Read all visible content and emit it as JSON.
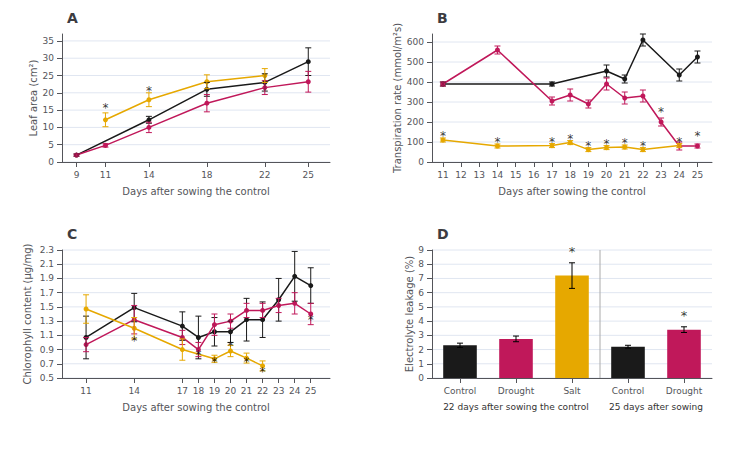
{
  "chart_data": [
    {
      "type": "line",
      "title": "A",
      "xlabel": "Days after sowing the control",
      "ylabel": "Leaf area (cm²)",
      "xlim": [
        8.0,
        26.5
      ],
      "xticks": [
        9,
        11,
        14,
        18,
        22,
        25
      ],
      "ylim": [
        0,
        37
      ],
      "yticks": [
        0,
        5,
        10,
        15,
        20,
        25,
        30,
        35
      ],
      "grid": true,
      "series": [
        {
          "color": "#1a1a1a",
          "x": [
            9,
            14,
            18,
            22,
            25
          ],
          "values": [
            2.0,
            12.2,
            21.0,
            23.0,
            29.0
          ],
          "errors": [
            0.3,
            1.0,
            2.0,
            2.5,
            4.0
          ]
        },
        {
          "color": "#c0185a",
          "x": [
            9,
            11,
            14,
            18,
            22,
            25
          ],
          "values": [
            2.0,
            4.8,
            10.0,
            17.0,
            21.5,
            23.2
          ],
          "errors": [
            0.3,
            0.5,
            1.5,
            2.5,
            2.0,
            3.0
          ]
        },
        {
          "color": "#e6a800",
          "x": [
            11,
            14,
            18,
            22
          ],
          "values": [
            12.2,
            18.0,
            23.2,
            25.0
          ],
          "errors": [
            2.0,
            2.0,
            2.0,
            2.0
          ]
        }
      ],
      "annotations": [
        {
          "text": "*",
          "x": 11,
          "y": 15.5
        },
        {
          "text": "*",
          "x": 14,
          "y": 20.5
        }
      ]
    },
    {
      "type": "line",
      "title": "B",
      "xlabel": "Days after sowing the control",
      "ylabel": "Transpiration rate (mmol/m²s)",
      "xlim": [
        10.4,
        25.8
      ],
      "xticks": [
        11,
        12,
        13,
        14,
        15,
        16,
        17,
        18,
        19,
        20,
        21,
        22,
        23,
        24,
        25
      ],
      "ylim": [
        0,
        640
      ],
      "yticks": [
        0,
        100,
        200,
        300,
        400,
        500,
        600
      ],
      "grid": true,
      "series": [
        {
          "color": "#1a1a1a",
          "x": [
            11,
            17,
            20,
            21,
            22,
            24,
            25
          ],
          "values": [
            390,
            390,
            455,
            415,
            610,
            435,
            525
          ],
          "errors": [
            10,
            10,
            30,
            20,
            30,
            30,
            30
          ]
        },
        {
          "color": "#c0185a",
          "x": [
            11,
            14,
            17,
            18,
            19,
            20,
            21,
            22,
            23,
            24,
            25
          ],
          "values": [
            390,
            560,
            305,
            335,
            290,
            390,
            320,
            330,
            200,
            80,
            80
          ],
          "errors": [
            10,
            20,
            20,
            30,
            20,
            30,
            30,
            30,
            20,
            20,
            10
          ]
        },
        {
          "color": "#e6a800",
          "x": [
            11,
            14,
            17,
            18,
            19,
            20,
            21,
            22,
            24
          ],
          "values": [
            110,
            80,
            82,
            97,
            62,
            72,
            75,
            62,
            82
          ],
          "errors": [
            10,
            10,
            10,
            10,
            10,
            10,
            10,
            10,
            10
          ]
        }
      ],
      "annotations": [
        {
          "text": "*",
          "x": 11,
          "y": 130
        },
        {
          "text": "*",
          "x": 14,
          "y": 100
        },
        {
          "text": "*",
          "x": 17,
          "y": 102
        },
        {
          "text": "*",
          "x": 18,
          "y": 117
        },
        {
          "text": "*",
          "x": 19,
          "y": 82
        },
        {
          "text": "*",
          "x": 20,
          "y": 92
        },
        {
          "text": "*",
          "x": 21,
          "y": 95
        },
        {
          "text": "*",
          "x": 22,
          "y": 82
        },
        {
          "text": "*",
          "x": 24,
          "y": 102
        },
        {
          "text": "*",
          "x": 23,
          "y": 250
        },
        {
          "text": "*",
          "x": 25,
          "y": 130
        }
      ]
    },
    {
      "type": "line",
      "title": "C",
      "xlabel": "Days after sowing the control",
      "ylabel": "Chlorophyll content (μg/mg)",
      "xlim": [
        9.5,
        26.2
      ],
      "xticks": [
        11,
        14,
        17,
        18,
        19,
        20,
        21,
        22,
        23,
        24,
        25
      ],
      "ylim": [
        0.5,
        2.3
      ],
      "yticks": [
        0.5,
        0.7,
        0.9,
        1.1,
        1.3,
        1.5,
        1.7,
        1.9,
        2.1,
        2.3
      ],
      "grid": true,
      "series": [
        {
          "color": "#1a1a1a",
          "x": [
            11,
            14,
            17,
            18,
            19,
            20,
            21,
            22,
            23,
            24,
            25
          ],
          "values": [
            1.07,
            1.49,
            1.23,
            1.07,
            1.15,
            1.15,
            1.32,
            1.32,
            1.6,
            1.93,
            1.8
          ],
          "errors": [
            0.3,
            0.2,
            0.2,
            0.3,
            0.2,
            0.15,
            0.3,
            0.25,
            0.3,
            0.35,
            0.25
          ]
        },
        {
          "color": "#c0185a",
          "x": [
            11,
            14,
            17,
            18,
            19,
            20,
            21,
            22,
            23,
            24,
            25
          ],
          "values": [
            0.97,
            1.32,
            1.07,
            0.9,
            1.25,
            1.3,
            1.45,
            1.45,
            1.52,
            1.55,
            1.4
          ],
          "errors": [
            0.1,
            0.2,
            0.1,
            0.1,
            0.15,
            0.1,
            0.1,
            0.1,
            0.1,
            0.15,
            0.15
          ]
        },
        {
          "color": "#e6a800",
          "x": [
            11,
            14,
            17,
            19,
            20,
            21,
            22
          ],
          "values": [
            1.47,
            1.2,
            0.9,
            0.77,
            0.88,
            0.78,
            0.67
          ],
          "errors": [
            0.2,
            0.15,
            0.15,
            0.05,
            0.08,
            0.07,
            0.07
          ]
        }
      ],
      "annotations": [
        {
          "text": "*",
          "x": 14,
          "y": 1.02
        },
        {
          "text": "*",
          "x": 18,
          "y": 0.82
        },
        {
          "text": "*",
          "x": 19,
          "y": 0.72
        },
        {
          "text": "*",
          "x": 20,
          "y": 0.95
        },
        {
          "text": "*",
          "x": 21,
          "y": 0.73
        },
        {
          "text": "*",
          "x": 22,
          "y": 0.58
        },
        {
          "text": "*",
          "x": 25,
          "y": 1.32
        }
      ]
    },
    {
      "type": "bar",
      "title": "D",
      "ylabel": "Electrolyte leakage (%)",
      "ylim": [
        0,
        9
      ],
      "yticks": [
        0,
        1,
        2,
        3,
        4,
        5,
        6,
        7,
        8,
        9
      ],
      "grid": true,
      "groups": [
        {
          "name": "22 days after sowing the control",
          "categories": [
            "Control",
            "Drought",
            "Salt"
          ],
          "values": [
            2.3,
            2.75,
            7.2
          ],
          "errors": [
            0.15,
            0.2,
            0.9
          ],
          "colors": [
            "#1a1a1a",
            "#c0185a",
            "#e6a800"
          ],
          "annotations": [
            {
              "text": "*",
              "category": "Salt"
            }
          ]
        },
        {
          "name": "25 days after sowing",
          "categories": [
            "Control",
            "Drought"
          ],
          "values": [
            2.2,
            3.4
          ],
          "errors": [
            0.1,
            0.2
          ],
          "colors": [
            "#1a1a1a",
            "#c0185a"
          ],
          "annotations": [
            {
              "text": "*",
              "category": "Drought"
            }
          ]
        }
      ]
    }
  ]
}
